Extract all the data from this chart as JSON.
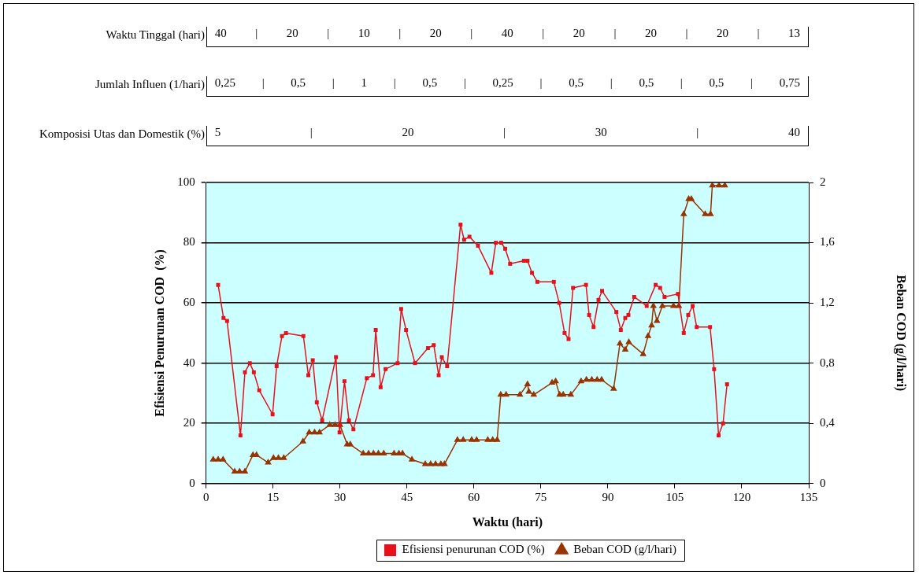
{
  "chart_data": {
    "type": "line",
    "xlabel": "Waktu (hari)",
    "ylabel": "Efisiensi Penurunan COD  (%)",
    "y2label": "Beban COD (g/l/hari)",
    "xlim": [
      0,
      135
    ],
    "xticks": [
      0,
      15,
      30,
      45,
      60,
      75,
      90,
      105,
      120,
      135
    ],
    "ylim": [
      0,
      100
    ],
    "yticks": [
      0,
      20,
      40,
      60,
      80,
      100
    ],
    "y2lim": [
      0,
      2
    ],
    "y2ticks": [
      0,
      {
        "value": 0.4,
        "label": "0,4"
      },
      {
        "value": 0.8,
        "label": "0,8"
      },
      {
        "value": 1.2,
        "label": "1,2"
      },
      {
        "value": 1.6,
        "label": "1,6"
      },
      2
    ],
    "grid": "y",
    "legend": "bottom",
    "series": [
      {
        "name": "Efisiensi penurunan COD (%)",
        "color": "#e8101a",
        "marker": "square",
        "x": [
          2.7,
          3.9,
          4.7,
          7.7,
          8.7,
          9.8,
          10.7,
          11.9,
          14.9,
          15.8,
          17.0,
          17.9,
          21.8,
          22.9,
          23.9,
          24.8,
          26.0,
          29.1,
          29.9,
          31.0,
          32.0,
          33.0,
          36.0,
          37.4,
          38.0,
          39.1,
          40.2,
          42.9,
          43.7,
          44.8,
          46.8,
          49.7,
          51.0,
          52.1,
          52.8,
          54.0,
          57.0,
          57.8,
          59.0,
          60.9,
          63.9,
          64.9,
          66.1,
          67.0,
          68.1,
          71.2,
          72.0,
          73.0,
          74.2,
          77.9,
          79.1,
          80.3,
          81.2,
          82.2,
          85.1,
          85.8,
          86.8,
          87.9,
          88.7,
          91.9,
          92.9,
          93.9,
          94.6,
          95.9,
          98.7,
          100.7,
          101.7,
          102.7,
          105.7,
          107.0,
          108.0,
          109.0,
          109.9,
          112.9,
          113.8,
          114.8,
          115.8,
          116.7
        ],
        "values": [
          66,
          55,
          54,
          16,
          37,
          40,
          37,
          31,
          23,
          39,
          49,
          50,
          49,
          36,
          41,
          27,
          21,
          42,
          17,
          34,
          21,
          18,
          35,
          36,
          51,
          32,
          38,
          40,
          58,
          51,
          40,
          45,
          46,
          36,
          42,
          39,
          86,
          81,
          82,
          79,
          70,
          80,
          80,
          78,
          73,
          74,
          74,
          70,
          67,
          67,
          60,
          50,
          48,
          65,
          66,
          56,
          52,
          61,
          64,
          57,
          51,
          55,
          56,
          62,
          59,
          66,
          65,
          62,
          63,
          50,
          56,
          59,
          52,
          52,
          38,
          16,
          20,
          33
        ]
      },
      {
        "name": "Beban COD (g/l/hari)",
        "color": "#993300",
        "marker": "triangle",
        "axis": "y2",
        "x": [
          1.6,
          2.7,
          3.8,
          6.4,
          7.5,
          8.7,
          10.5,
          11.3,
          13.9,
          15.1,
          16.2,
          17.4,
          21.7,
          23.1,
          24.3,
          25.4,
          27.7,
          28.9,
          30.0,
          31.6,
          32.3,
          35.2,
          36.4,
          37.5,
          38.6,
          39.8,
          42.1,
          43.2,
          44.0,
          46.1,
          49.1,
          50.3,
          51.4,
          52.6,
          53.4,
          56.3,
          57.6,
          59.5,
          60.6,
          63.1,
          64.2,
          65.2,
          66.0,
          67.2,
          70.3,
          72.0,
          72.3,
          73.4,
          77.5,
          78.3,
          79.2,
          80.0,
          81.7,
          84.0,
          85.2,
          86.4,
          87.6,
          88.6,
          91.3,
          92.7,
          93.9,
          94.7,
          97.9,
          99.0,
          99.8,
          100.2,
          101.0,
          102.2,
          104.7,
          105.9,
          107.0,
          108.1,
          108.7,
          111.8,
          113.0,
          113.4,
          114.9,
          116.2
        ],
        "values": [
          0.16,
          0.16,
          0.16,
          0.08,
          0.08,
          0.08,
          0.19,
          0.19,
          0.14,
          0.17,
          0.17,
          0.17,
          0.28,
          0.34,
          0.34,
          0.34,
          0.39,
          0.39,
          0.39,
          0.26,
          0.26,
          0.2,
          0.2,
          0.2,
          0.2,
          0.2,
          0.2,
          0.2,
          0.2,
          0.16,
          0.13,
          0.13,
          0.13,
          0.13,
          0.13,
          0.29,
          0.29,
          0.29,
          0.29,
          0.29,
          0.29,
          0.29,
          0.59,
          0.59,
          0.59,
          0.66,
          0.61,
          0.59,
          0.67,
          0.68,
          0.59,
          0.59,
          0.59,
          0.68,
          0.69,
          0.69,
          0.69,
          0.69,
          0.63,
          0.93,
          0.89,
          0.94,
          0.86,
          0.98,
          1.05,
          1.18,
          1.08,
          1.18,
          1.18,
          1.18,
          1.79,
          1.89,
          1.89,
          1.79,
          1.79,
          1.98,
          1.98,
          1.98
        ]
      }
    ],
    "annotations": [
      "Waktu Tinggal (hari)",
      "40 | 20 | 10 | 20 | 40 | 20 | 20 | 20 | 13",
      "Jumlah Influen (1/hari)",
      "0,25 | 0,5 | 1 | 0,5 | 0,25 | 0,5 | 0,5 | 0,5 | 0,75",
      "Komposisi Utas dan Domestik (%)",
      "5 | 20 | 30 | 40"
    ]
  }
}
